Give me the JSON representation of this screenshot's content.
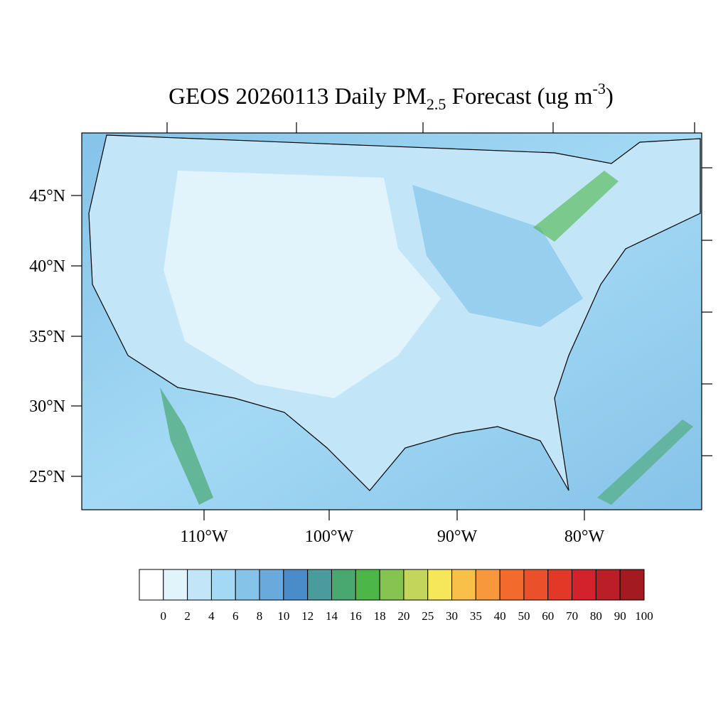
{
  "title": {
    "main": "GEOS 20260113 Daily PM",
    "subscript": "2.5",
    "middle": " Forecast (ug m",
    "superscript": "-3",
    "end": ")"
  },
  "map": {
    "lat_labels": [
      "45°N",
      "40°N",
      "35°N",
      "30°N",
      "25°N"
    ],
    "lon_labels": [
      "110°W",
      "100°W",
      "90°W",
      "80°W"
    ]
  },
  "colorbar": {
    "levels": [
      0,
      2,
      4,
      6,
      8,
      10,
      12,
      14,
      16,
      18,
      20,
      25,
      30,
      35,
      40,
      50,
      60,
      70,
      80,
      90,
      100
    ],
    "colors": [
      "#ffffff",
      "#e1f3fb",
      "#c2e6f8",
      "#a3d9f4",
      "#86c3e9",
      "#69a9db",
      "#4a8bc9",
      "#4a9b9c",
      "#48a870",
      "#4cb648",
      "#86c451",
      "#c3d55b",
      "#f6e65a",
      "#f8bf49",
      "#f6983b",
      "#f26b2c",
      "#ea512a",
      "#e13828",
      "#d3222b",
      "#ba1f27",
      "#a31b20",
      "#8d1719"
    ]
  }
}
